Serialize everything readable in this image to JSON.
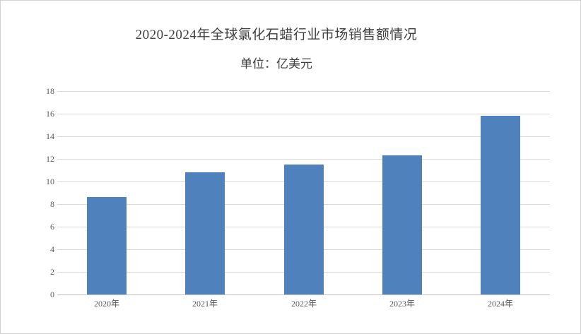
{
  "chart_data": {
    "type": "bar",
    "title": "2020-2024年全球氯化石蜡行业市场销售额情况",
    "subtitle": "单位：亿美元",
    "categories": [
      "2020年",
      "2021年",
      "2022年",
      "2023年",
      "2024年"
    ],
    "values": [
      8.6,
      10.8,
      11.5,
      12.3,
      15.8
    ],
    "xlabel": "",
    "ylabel": "",
    "ylim": [
      0,
      18
    ],
    "ytick_step": 2,
    "grid": true,
    "legend_position": "none",
    "colors": {
      "bar": "#4f81bd",
      "gridline": "#d9d9d9",
      "axis_line": "#c3c3c3",
      "tick_text": "#595959",
      "title_text": "#404040",
      "canvas_border": "#d2d2d2",
      "background": "#ffffff"
    }
  }
}
